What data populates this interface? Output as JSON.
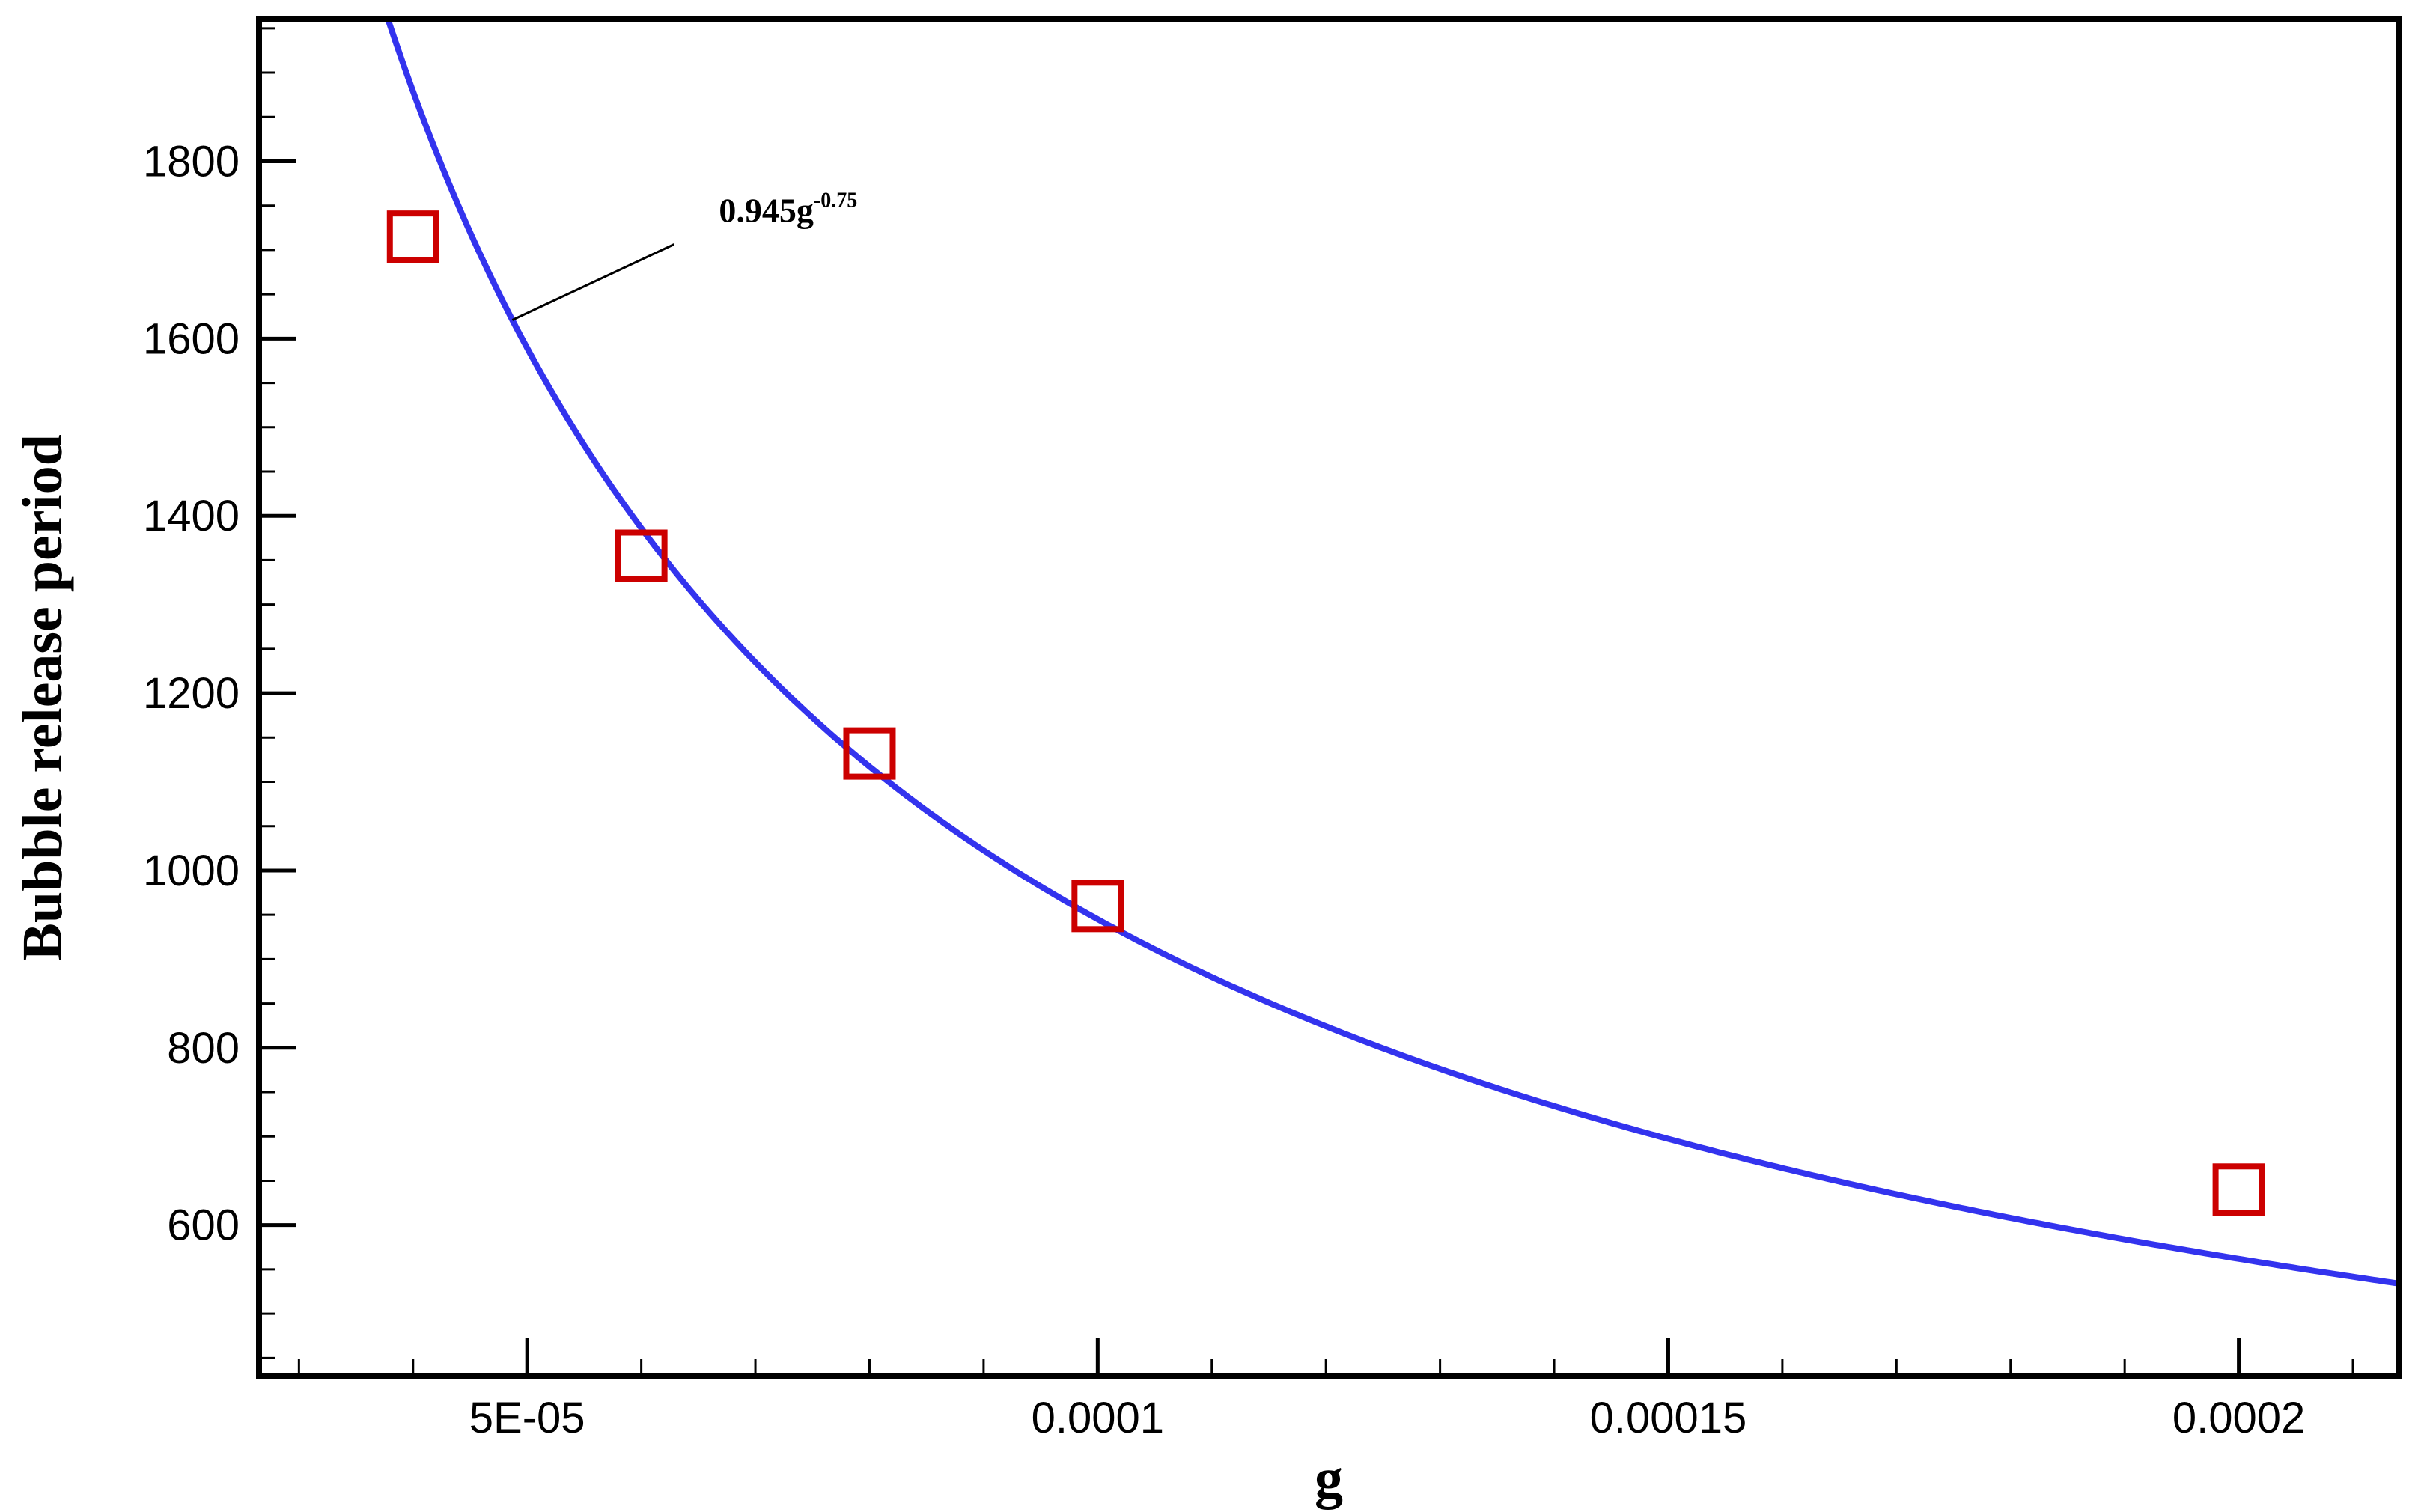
{
  "chart_data": {
    "type": "scatter",
    "xlabel": "g",
    "ylabel": "Bubble release period",
    "xlim": [
      2.65e-05,
      0.000214
    ],
    "ylim": [
      430,
      1960
    ],
    "x_ticks": [
      5e-05,
      0.0001,
      0.00015,
      0.0002
    ],
    "x_tick_labels": [
      "5E-05",
      "0.0001",
      "0.00015",
      "0.0002"
    ],
    "x_minor_step": 1e-05,
    "y_ticks": [
      600,
      800,
      1000,
      1200,
      1400,
      1600,
      1800
    ],
    "y_tick_labels": [
      "600",
      "800",
      "1000",
      "1200",
      "1400",
      "1600",
      "1800"
    ],
    "y_minor_step": 50,
    "grid": false,
    "series": [
      {
        "kind": "markers",
        "marker": "open-square",
        "color": "#cc0000",
        "points": [
          {
            "x": 4e-05,
            "y": 1715
          },
          {
            "x": 6e-05,
            "y": 1355
          },
          {
            "x": 8e-05,
            "y": 1132
          },
          {
            "x": 0.0001,
            "y": 960
          },
          {
            "x": 0.0002,
            "y": 640
          }
        ]
      },
      {
        "kind": "curve",
        "color": "#3333ee",
        "coefficient": 0.945,
        "exponent": -0.75
      }
    ],
    "annotation": {
      "text_base": "0.945g",
      "text_sup": "-0.75",
      "leader_x": 4.87e-05
    }
  }
}
